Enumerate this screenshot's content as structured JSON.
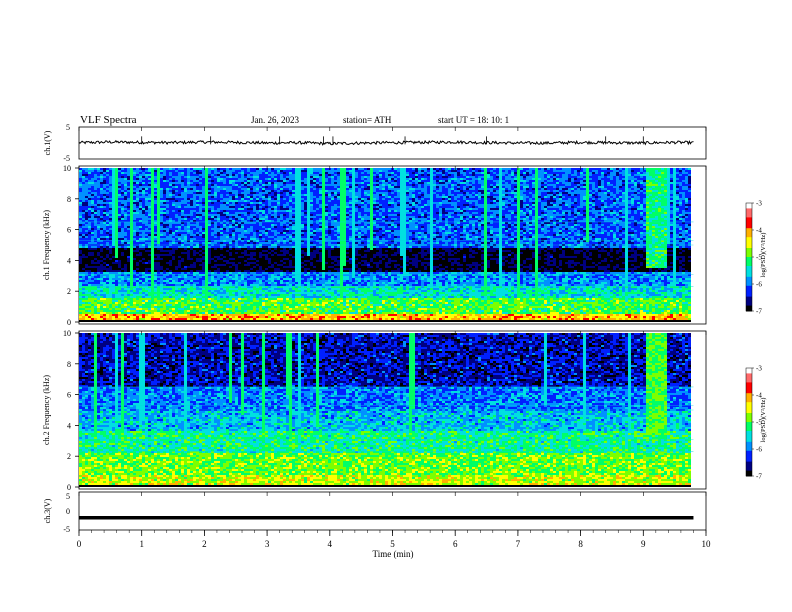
{
  "header": {
    "title": "VLF  Spectra",
    "date": "Jan. 26, 2023",
    "station": "station= ATH",
    "start": "start  UT  =   18: 10: 1"
  },
  "colors": {
    "colormap": [
      "#ffffff",
      "#ff6a6a",
      "#ff0000",
      "#ffb000",
      "#ffff00",
      "#7cff00",
      "#00ff66",
      "#00e0e0",
      "#0090ff",
      "#0020ff",
      "#000080",
      "#000000"
    ],
    "trace": "#000000",
    "axis": "#000000"
  },
  "chart_data": [
    {
      "type": "line",
      "name": "ch1-waveform",
      "ylabel": "ch.1(V)",
      "ylim": [
        -5,
        5
      ],
      "yticks": [
        "5",
        "-5"
      ],
      "xlim": [
        0,
        10
      ],
      "x": [
        0,
        0.5,
        1,
        1.5,
        2,
        2.5,
        3,
        3.5,
        4,
        4.5,
        5,
        5.5,
        6,
        6.5,
        7,
        7.5,
        8,
        8.5,
        9,
        9.5,
        9.8
      ],
      "y": [
        0.1,
        0.3,
        0.2,
        0.1,
        0.3,
        0.2,
        0.0,
        0.1,
        -0.2,
        0.0,
        0.1,
        0.2,
        0.3,
        0.1,
        0.0,
        0.0,
        0.2,
        0.1,
        0.0,
        0.2,
        0.1
      ]
    },
    {
      "type": "heatmap",
      "name": "ch1-spectrogram",
      "ylabel": "ch.1\nFrequency (kHz)",
      "xlim": [
        0,
        10
      ],
      "ylim": [
        0,
        10
      ],
      "yticks": [
        "0",
        "2",
        "4",
        "6",
        "8",
        "10"
      ],
      "colorbar": {
        "label": "log(PSD)(V²/Hz)",
        "range": [
          -7,
          -3
        ],
        "ticks": [
          "-3",
          "-4",
          "-5",
          "-6",
          "-7"
        ]
      },
      "bands": [
        {
          "f": [
            0.1,
            0.5
          ],
          "level": -4.2
        },
        {
          "f": [
            0.5,
            1.6
          ],
          "level": -5.0
        },
        {
          "f": [
            1.6,
            2.4
          ],
          "level": -5.5
        },
        {
          "f": [
            2.4,
            3.2
          ],
          "level": -5.9
        },
        {
          "f": [
            3.2,
            4.8
          ],
          "level": -6.9
        },
        {
          "f": [
            4.8,
            10.0
          ],
          "level": -6.1
        }
      ],
      "burst": {
        "t": [
          9.0,
          9.35
        ],
        "f": [
          3.5,
          10.0
        ],
        "level": -5.2
      }
    },
    {
      "type": "heatmap",
      "name": "ch2-spectrogram",
      "ylabel": "ch.2\nFrequency (kHz)",
      "xlim": [
        0,
        10
      ],
      "ylim": [
        0,
        10
      ],
      "yticks": [
        "0",
        "2",
        "4",
        "6",
        "8",
        "10"
      ],
      "colorbar": {
        "label": "log(PSD)(V²/Hz)",
        "range": [
          -7,
          -3
        ],
        "ticks": [
          "-3",
          "-4",
          "-5",
          "-6",
          "-7"
        ]
      },
      "bands": [
        {
          "f": [
            0.1,
            0.8
          ],
          "level": -4.6
        },
        {
          "f": [
            0.8,
            2.2
          ],
          "level": -4.9
        },
        {
          "f": [
            2.2,
            3.6
          ],
          "level": -5.3
        },
        {
          "f": [
            3.6,
            5.0
          ],
          "level": -5.7
        },
        {
          "f": [
            5.0,
            6.5
          ],
          "level": -6.0
        },
        {
          "f": [
            6.5,
            10.0
          ],
          "level": -6.5
        }
      ],
      "burst": {
        "t": [
          9.0,
          9.35
        ],
        "f": [
          3.4,
          10.0
        ],
        "level": -5.0
      }
    },
    {
      "type": "line",
      "name": "ch3-waveform",
      "ylabel": "ch.3(V)",
      "ylim": [
        -5,
        5
      ],
      "yticks": [
        "5",
        "0",
        "-5"
      ],
      "xlim": [
        0,
        10
      ],
      "x": [
        0,
        9.8
      ],
      "y": [
        -2.0,
        -2.0
      ]
    }
  ],
  "time_axis": {
    "label": "Time  (min)",
    "ticks": [
      "0",
      "1",
      "2",
      "3",
      "4",
      "5",
      "6",
      "7",
      "8",
      "9",
      "10"
    ]
  }
}
